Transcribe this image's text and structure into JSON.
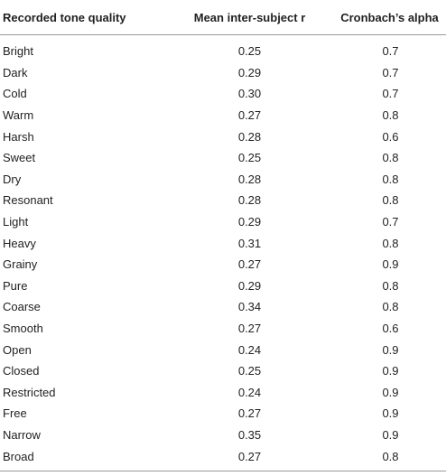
{
  "table": {
    "headers": [
      "Recorded tone quality",
      "Mean inter-subject r",
      "Cronbach’s alpha"
    ],
    "rows": [
      {
        "quality": "Bright",
        "r": "0.25",
        "alpha": "0.7"
      },
      {
        "quality": "Dark",
        "r": "0.29",
        "alpha": "0.7"
      },
      {
        "quality": "Cold",
        "r": "0.30",
        "alpha": "0.7"
      },
      {
        "quality": "Warm",
        "r": "0.27",
        "alpha": "0.8"
      },
      {
        "quality": "Harsh",
        "r": "0.28",
        "alpha": "0.6"
      },
      {
        "quality": "Sweet",
        "r": "0.25",
        "alpha": "0.8"
      },
      {
        "quality": "Dry",
        "r": "0.28",
        "alpha": "0.8"
      },
      {
        "quality": "Resonant",
        "r": "0.28",
        "alpha": "0.8"
      },
      {
        "quality": "Light",
        "r": "0.29",
        "alpha": "0.7"
      },
      {
        "quality": "Heavy",
        "r": "0.31",
        "alpha": "0.8"
      },
      {
        "quality": "Grainy",
        "r": "0.27",
        "alpha": "0.9"
      },
      {
        "quality": "Pure",
        "r": "0.29",
        "alpha": "0.8"
      },
      {
        "quality": "Coarse",
        "r": "0.34",
        "alpha": "0.8"
      },
      {
        "quality": "Smooth",
        "r": "0.27",
        "alpha": "0.6"
      },
      {
        "quality": "Open",
        "r": "0.24",
        "alpha": "0.9"
      },
      {
        "quality": "Closed",
        "r": "0.25",
        "alpha": "0.9"
      },
      {
        "quality": "Restricted",
        "r": "0.24",
        "alpha": "0.9"
      },
      {
        "quality": "Free",
        "r": "0.27",
        "alpha": "0.9"
      },
      {
        "quality": "Narrow",
        "r": "0.35",
        "alpha": "0.9"
      },
      {
        "quality": "Broad",
        "r": "0.27",
        "alpha": "0.8"
      }
    ]
  }
}
